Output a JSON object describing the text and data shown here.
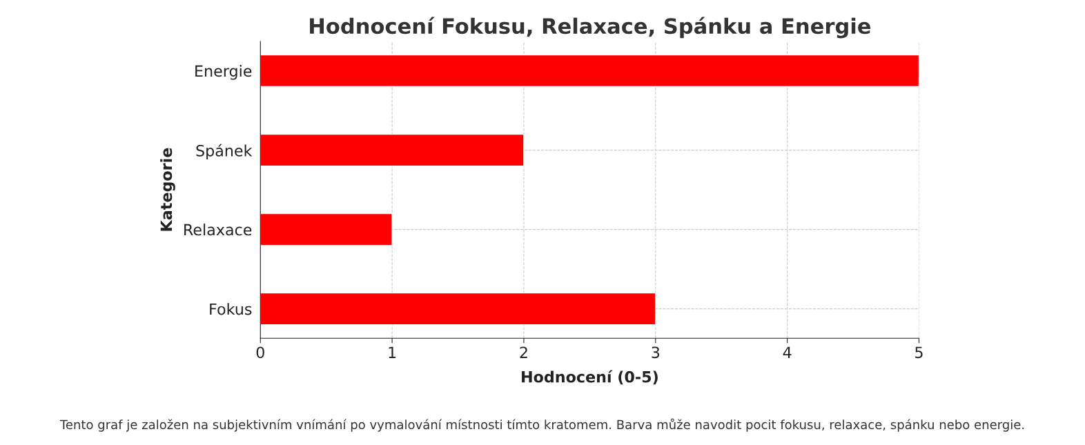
{
  "chart_data": {
    "type": "bar",
    "orientation": "horizontal",
    "title": "Hodnocení Fokusu, Relaxace, Spánku a Energie",
    "categories": [
      "Energie",
      "Spánek",
      "Relaxace",
      "Fokus"
    ],
    "values": [
      5,
      2,
      1,
      3
    ],
    "color": "#ff0000",
    "xlabel": "Hodnocení (0-5)",
    "ylabel": "Kategorie",
    "xlim": [
      0,
      5
    ],
    "xticks": [
      0,
      1,
      2,
      3,
      4,
      5
    ],
    "grid": true,
    "annotations": [
      "Tento graf je založen na subjektivním vnímání po vymalování místnosti tímto kratomem. Barva může navodit pocit fokusu, relaxace, spánku nebo energie."
    ]
  }
}
